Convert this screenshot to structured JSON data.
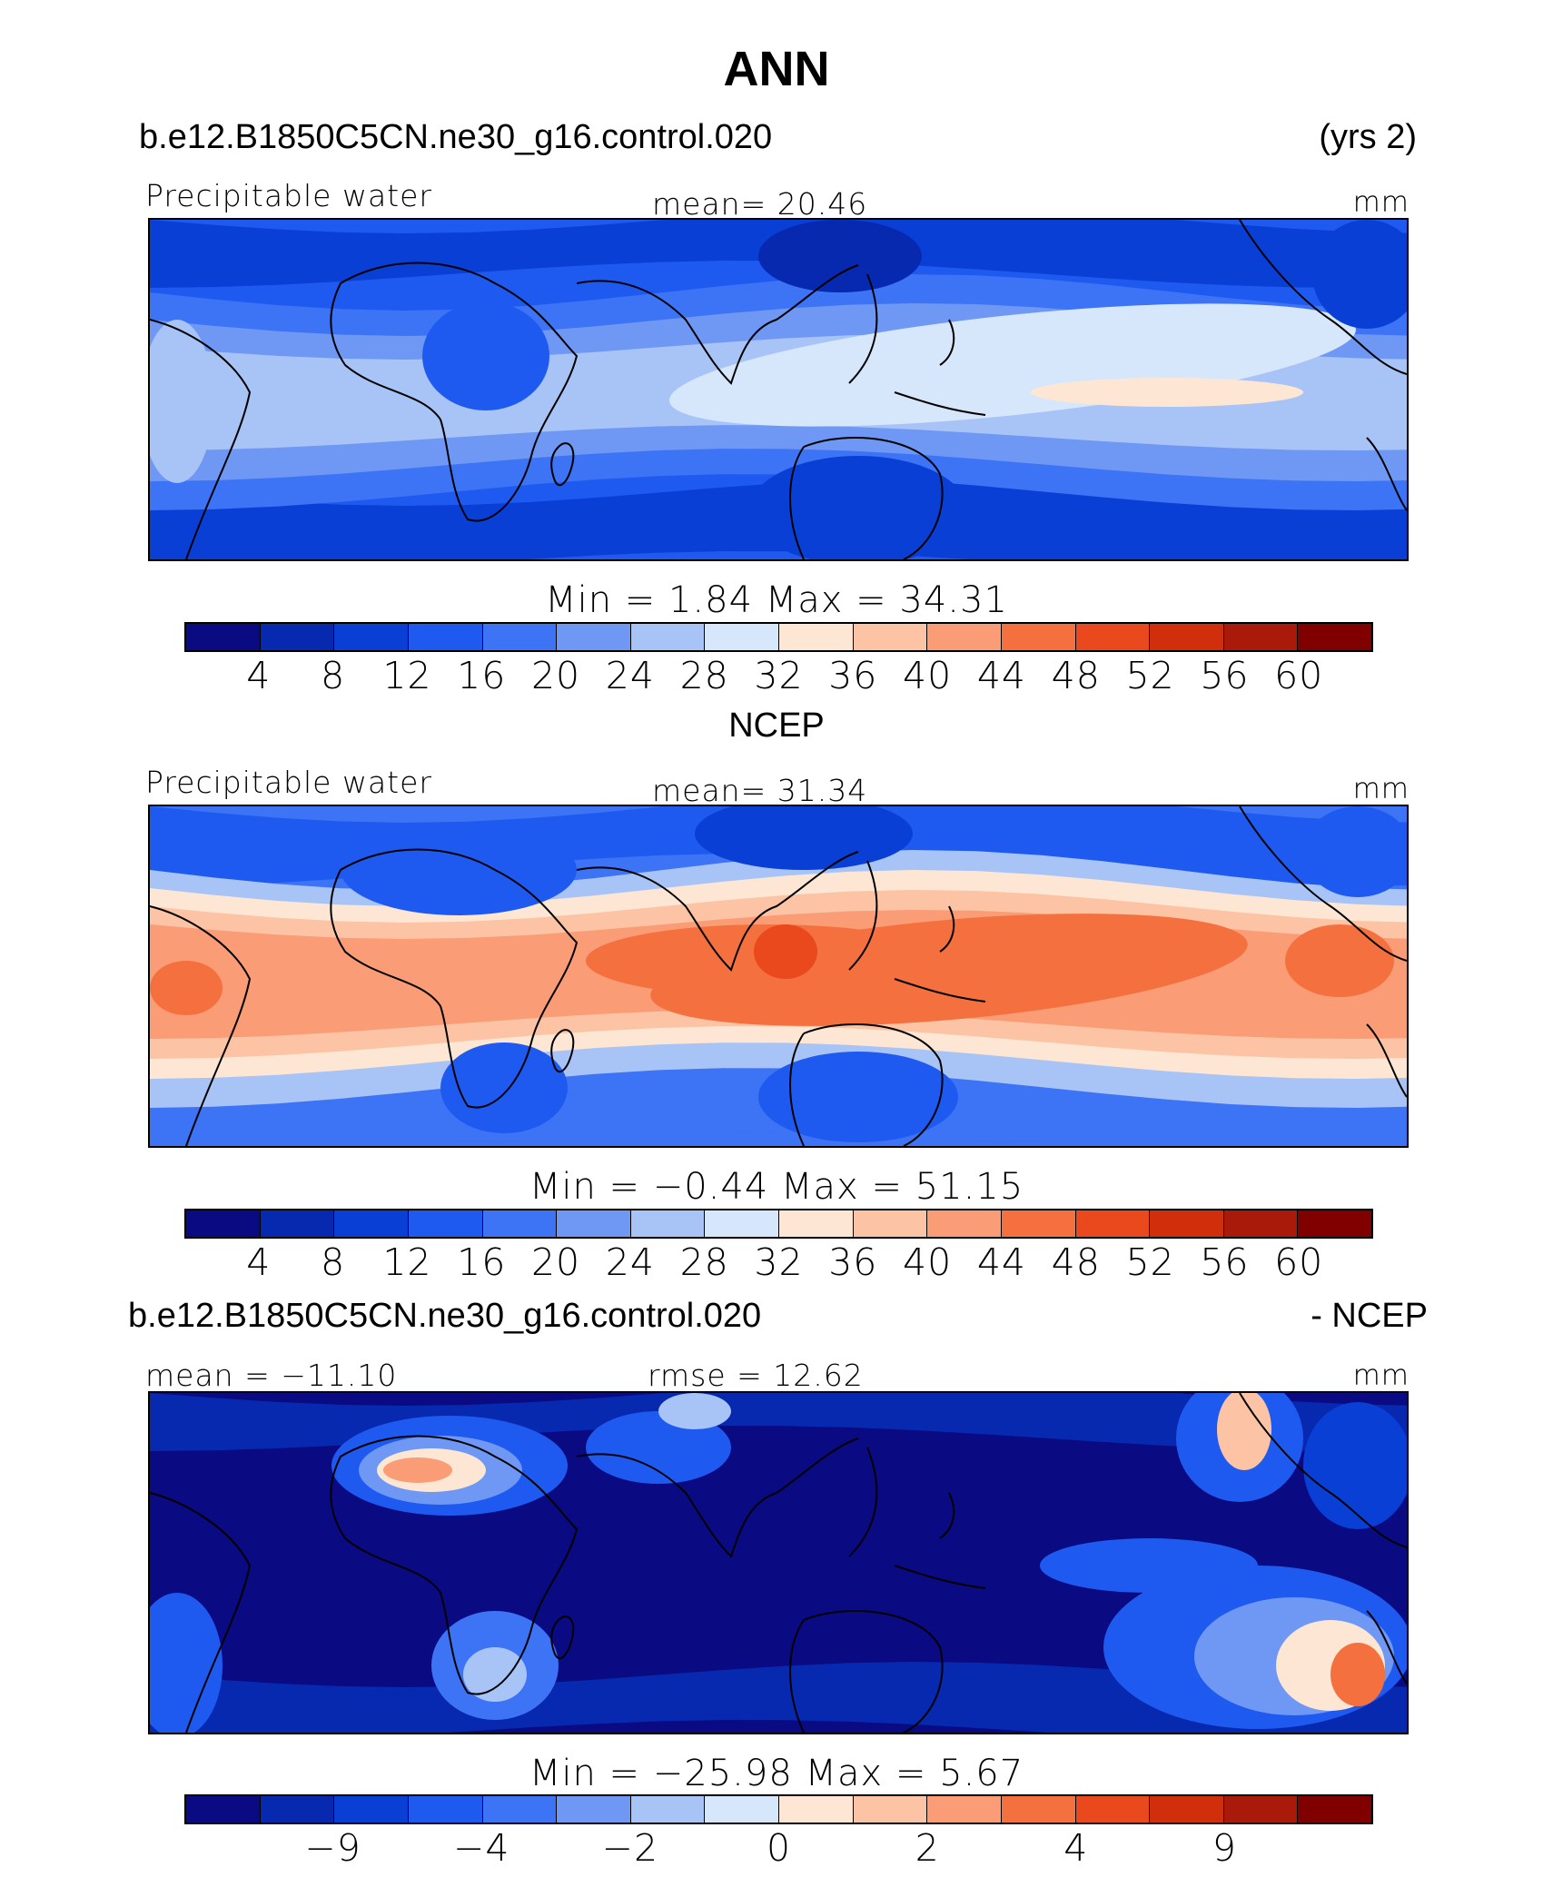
{
  "title": "ANN",
  "panels": [
    {
      "case": "b.e12.B1850C5CN.ne30_g16.control.020",
      "case_right": "(yrs 2)",
      "variable": "Precipitable water",
      "center_stat": "mean=   20.46",
      "units": "mm",
      "minmax": "Min  =     1.84  Max  =    34.31",
      "field_style": "model"
    },
    {
      "case": "NCEP",
      "case_right": "",
      "variable": "Precipitable water",
      "center_stat": "mean=   31.34",
      "units": "mm",
      "minmax": "Min  =   −0.44  Max  =    51.15",
      "field_style": "obs"
    },
    {
      "case": "b.e12.B1850C5CN.ne30_g16.control.020",
      "case_right": "- NCEP",
      "variable": "mean = −11.10",
      "center_stat": "rmse =   12.62",
      "units": "mm",
      "minmax": "Min  = −25.98  Max  =     5.67",
      "field_style": "diff"
    }
  ],
  "colorbar": {
    "colors": [
      "#0a0a82",
      "#0629b0",
      "#0a3fd6",
      "#1f5af0",
      "#3d73f5",
      "#6f98f5",
      "#a8c4f7",
      "#d6e6fb",
      "#fde7d4",
      "#fcc3a4",
      "#fa9c75",
      "#f4703f",
      "#e9491c",
      "#d12f0c",
      "#aa1a0a",
      "#800000"
    ],
    "ticks_abs": [
      "4",
      "8",
      "12",
      "16",
      "20",
      "24",
      "28",
      "32",
      "36",
      "40",
      "44",
      "48",
      "52",
      "56",
      "60"
    ],
    "ticks_diff": [
      "−9",
      "−4",
      "−2",
      "0",
      "2",
      "4",
      "9"
    ]
  }
}
